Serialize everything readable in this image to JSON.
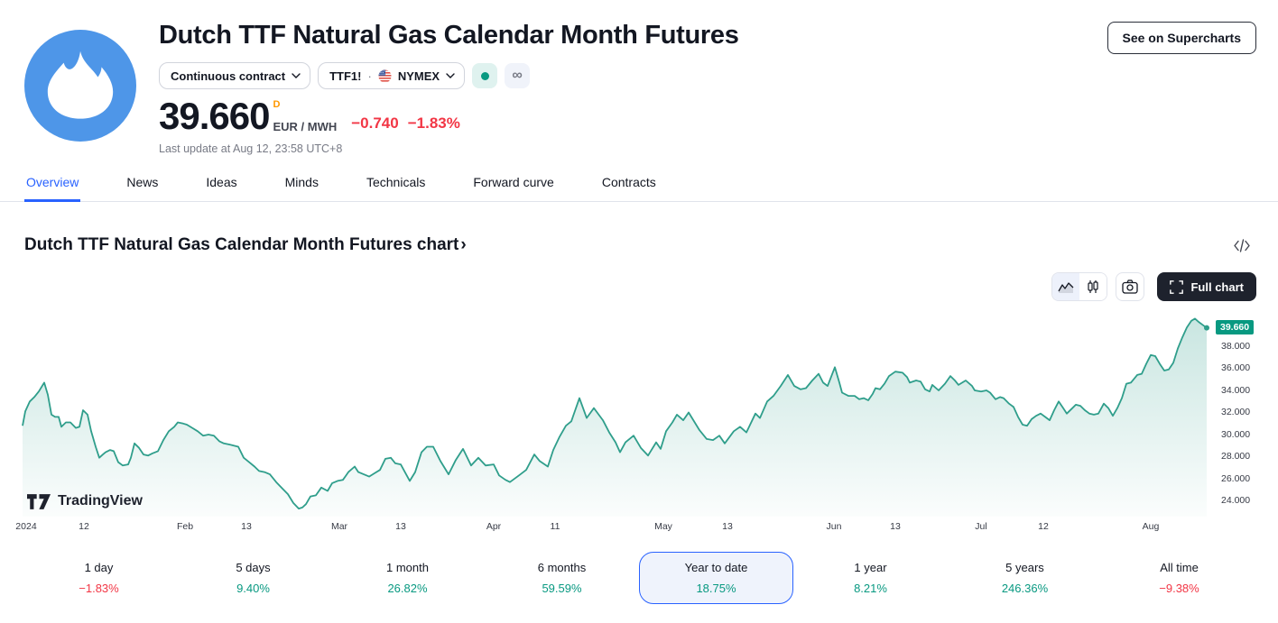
{
  "header": {
    "title": "Dutch TTF Natural Gas Calendar Month Futures",
    "contract_dropdown": {
      "label": "Continuous contract"
    },
    "symbol": {
      "ticker": "TTF1!",
      "separator": "·",
      "exchange": "NYMEX"
    },
    "infinity_glyph": "∞",
    "price": {
      "value": "39.660",
      "session_flag": "D",
      "unit": "EUR / MWH",
      "change_abs": "−0.740",
      "change_pct": "−1.83%"
    },
    "last_update": "Last update at Aug 12, 23:58 UTC+8",
    "supercharts_button": "See on Supercharts"
  },
  "tabs": [
    {
      "label": "Overview",
      "active": true
    },
    {
      "label": "News"
    },
    {
      "label": "Ideas"
    },
    {
      "label": "Minds"
    },
    {
      "label": "Technicals"
    },
    {
      "label": "Forward curve"
    },
    {
      "label": "Contracts"
    }
  ],
  "section": {
    "heading": "Dutch TTF Natural Gas Calendar Month Futures chart",
    "chevron": "›"
  },
  "controls": {
    "full_chart_label": "Full chart"
  },
  "watermark": {
    "brand": "TradingView"
  },
  "ranges": [
    {
      "label": "1 day",
      "value": "−1.83%",
      "trend": "down"
    },
    {
      "label": "5 days",
      "value": "9.40%",
      "trend": "up"
    },
    {
      "label": "1 month",
      "value": "26.82%",
      "trend": "up"
    },
    {
      "label": "6 months",
      "value": "59.59%",
      "trend": "up"
    },
    {
      "label": "Year to date",
      "value": "18.75%",
      "trend": "up",
      "selected": true
    },
    {
      "label": "1 year",
      "value": "8.21%",
      "trend": "up"
    },
    {
      "label": "5 years",
      "value": "246.36%",
      "trend": "up"
    },
    {
      "label": "All time",
      "value": "−9.38%",
      "trend": "down"
    }
  ],
  "colors": {
    "accent_blue": "#2962ff",
    "up_green": "#089981",
    "down_red": "#f23645",
    "line_teal": "#2f9e8b",
    "logo_blue": "#4e96e8",
    "badge_green": "#089981",
    "session_flag_orange": "#ff9800",
    "dark_button": "#1e222d"
  },
  "chart_data": {
    "type": "area",
    "symbol": "TTF1!",
    "unit": "EUR/MWH",
    "last_price": 39.66,
    "last_price_label": "39.660",
    "ylim": [
      23,
      41
    ],
    "grid": false,
    "legend": false,
    "y_ticks": [
      38,
      36,
      34,
      32,
      30,
      28,
      26,
      24
    ],
    "x_ticks": [
      {
        "label": "2024",
        "x": 29
      },
      {
        "label": "12",
        "x": 93
      },
      {
        "label": "Feb",
        "x": 205
      },
      {
        "label": "13",
        "x": 273
      },
      {
        "label": "Mar",
        "x": 376
      },
      {
        "label": "13",
        "x": 444
      },
      {
        "label": "Apr",
        "x": 547
      },
      {
        "label": "11",
        "x": 615
      },
      {
        "label": "May",
        "x": 735
      },
      {
        "label": "13",
        "x": 806
      },
      {
        "label": "Jun",
        "x": 924
      },
      {
        "label": "13",
        "x": 992
      },
      {
        "label": "Jul",
        "x": 1087
      },
      {
        "label": "12",
        "x": 1156
      },
      {
        "label": "Aug",
        "x": 1275
      }
    ],
    "x_domain": [
      10,
      1340
    ],
    "points": [
      [
        25,
        30.8
      ],
      [
        28,
        32.1
      ],
      [
        33,
        33
      ],
      [
        38,
        33.4
      ],
      [
        43,
        33.9
      ],
      [
        49,
        34.7
      ],
      [
        53,
        33.6
      ],
      [
        57,
        31.8
      ],
      [
        61,
        31.6
      ],
      [
        65,
        31.6
      ],
      [
        68,
        30.7
      ],
      [
        73,
        31.1
      ],
      [
        78,
        31.1
      ],
      [
        84,
        30.6
      ],
      [
        88,
        30.7
      ],
      [
        92,
        32.2
      ],
      [
        97,
        31.8
      ],
      [
        101,
        30.3
      ],
      [
        106,
        28.9
      ],
      [
        110,
        27.9
      ],
      [
        114,
        28.2
      ],
      [
        117,
        28.4
      ],
      [
        122,
        28.6
      ],
      [
        126,
        28.5
      ],
      [
        131,
        27.5
      ],
      [
        136,
        27.2
      ],
      [
        142,
        27.3
      ],
      [
        145,
        27.9
      ],
      [
        149,
        29.2
      ],
      [
        154,
        28.8
      ],
      [
        159,
        28.2
      ],
      [
        164,
        28.1
      ],
      [
        169,
        28.3
      ],
      [
        175,
        28.5
      ],
      [
        181,
        29.5
      ],
      [
        187,
        30.3
      ],
      [
        193,
        30.7
      ],
      [
        197,
        31.1
      ],
      [
        203,
        31
      ],
      [
        207,
        30.9
      ],
      [
        213,
        30.6
      ],
      [
        219,
        30.3
      ],
      [
        225,
        29.9
      ],
      [
        231,
        30
      ],
      [
        237,
        29.9
      ],
      [
        243,
        29.4
      ],
      [
        248,
        29.2
      ],
      [
        254,
        29.1
      ],
      [
        259,
        29
      ],
      [
        264,
        28.9
      ],
      [
        270,
        27.9
      ],
      [
        276,
        27.5
      ],
      [
        282,
        27.1
      ],
      [
        287,
        26.7
      ],
      [
        293,
        26.6
      ],
      [
        299,
        26.4
      ],
      [
        306,
        25.7
      ],
      [
        313,
        25.1
      ],
      [
        319,
        24.6
      ],
      [
        325,
        23.8
      ],
      [
        331,
        23.3
      ],
      [
        335,
        23.4
      ],
      [
        339,
        23.7
      ],
      [
        344,
        24.4
      ],
      [
        350,
        24.5
      ],
      [
        356,
        25.2
      ],
      [
        363,
        24.9
      ],
      [
        368,
        25.6
      ],
      [
        374,
        25.8
      ],
      [
        380,
        25.9
      ],
      [
        386,
        26.6
      ],
      [
        393,
        27.1
      ],
      [
        397,
        26.6
      ],
      [
        403,
        26.4
      ],
      [
        409,
        26.2
      ],
      [
        415,
        26.5
      ],
      [
        421,
        26.8
      ],
      [
        427,
        27.8
      ],
      [
        433,
        27.9
      ],
      [
        438,
        27.4
      ],
      [
        444,
        27.3
      ],
      [
        448,
        26.7
      ],
      [
        454,
        25.8
      ],
      [
        460,
        26.6
      ],
      [
        467,
        28.4
      ],
      [
        473,
        28.9
      ],
      [
        480,
        28.9
      ],
      [
        488,
        27.6
      ],
      [
        497,
        26.4
      ],
      [
        505,
        27.7
      ],
      [
        513,
        28.7
      ],
      [
        522,
        27.2
      ],
      [
        530,
        27.9
      ],
      [
        538,
        27.2
      ],
      [
        547,
        27.3
      ],
      [
        553,
        26.3
      ],
      [
        560,
        25.9
      ],
      [
        565,
        25.7
      ],
      [
        575,
        26.3
      ],
      [
        583,
        26.8
      ],
      [
        592,
        28.2
      ],
      [
        598,
        27.6
      ],
      [
        607,
        27.1
      ],
      [
        613,
        28.6
      ],
      [
        620,
        29.8
      ],
      [
        627,
        30.8
      ],
      [
        633,
        31.2
      ],
      [
        642,
        33.3
      ],
      [
        650,
        31.5
      ],
      [
        658,
        32.4
      ],
      [
        668,
        31.3
      ],
      [
        675,
        30.2
      ],
      [
        682,
        29.3
      ],
      [
        687,
        28.4
      ],
      [
        693,
        29.3
      ],
      [
        702,
        29.9
      ],
      [
        710,
        28.8
      ],
      [
        718,
        28.1
      ],
      [
        727,
        29.3
      ],
      [
        732,
        28.7
      ],
      [
        738,
        30.3
      ],
      [
        745,
        31.1
      ],
      [
        750,
        31.8
      ],
      [
        757,
        31.3
      ],
      [
        763,
        32
      ],
      [
        775,
        30.4
      ],
      [
        783,
        29.6
      ],
      [
        790,
        29.5
      ],
      [
        797,
        29.9
      ],
      [
        803,
        29.2
      ],
      [
        813,
        30.3
      ],
      [
        820,
        30.7
      ],
      [
        827,
        30.2
      ],
      [
        837,
        31.9
      ],
      [
        842,
        31.5
      ],
      [
        850,
        33
      ],
      [
        857,
        33.5
      ],
      [
        865,
        34.4
      ],
      [
        873,
        35.4
      ],
      [
        880,
        34.4
      ],
      [
        887,
        34.1
      ],
      [
        893,
        34.2
      ],
      [
        900,
        34.9
      ],
      [
        907,
        35.5
      ],
      [
        912,
        34.7
      ],
      [
        917,
        34.4
      ],
      [
        925,
        36.1
      ],
      [
        930,
        34.7
      ],
      [
        933,
        33.8
      ],
      [
        940,
        33.5
      ],
      [
        947,
        33.5
      ],
      [
        952,
        33.2
      ],
      [
        957,
        33.3
      ],
      [
        962,
        33.1
      ],
      [
        967,
        33.7
      ],
      [
        970,
        34.2
      ],
      [
        975,
        34.1
      ],
      [
        980,
        34.6
      ],
      [
        985,
        35.3
      ],
      [
        992,
        35.7
      ],
      [
        1000,
        35.6
      ],
      [
        1005,
        35.2
      ],
      [
        1008,
        34.7
      ],
      [
        1015,
        34.9
      ],
      [
        1020,
        34.8
      ],
      [
        1025,
        34.1
      ],
      [
        1030,
        33.9
      ],
      [
        1033,
        34.5
      ],
      [
        1040,
        34
      ],
      [
        1047,
        34.6
      ],
      [
        1053,
        35.3
      ],
      [
        1058,
        34.9
      ],
      [
        1062,
        34.5
      ],
      [
        1070,
        34.9
      ],
      [
        1077,
        34.4
      ],
      [
        1080,
        34
      ],
      [
        1087,
        33.9
      ],
      [
        1093,
        34
      ],
      [
        1097,
        33.8
      ],
      [
        1103,
        33.2
      ],
      [
        1108,
        33.4
      ],
      [
        1112,
        33.3
      ],
      [
        1118,
        32.8
      ],
      [
        1123,
        32.5
      ],
      [
        1128,
        31.6
      ],
      [
        1133,
        30.9
      ],
      [
        1138,
        30.8
      ],
      [
        1143,
        31.4
      ],
      [
        1148,
        31.7
      ],
      [
        1153,
        31.9
      ],
      [
        1158,
        31.6
      ],
      [
        1163,
        31.3
      ],
      [
        1168,
        32.2
      ],
      [
        1173,
        33
      ],
      [
        1178,
        32.4
      ],
      [
        1182,
        31.9
      ],
      [
        1187,
        32.3
      ],
      [
        1192,
        32.7
      ],
      [
        1197,
        32.6
      ],
      [
        1202,
        32.2
      ],
      [
        1207,
        31.9
      ],
      [
        1212,
        31.8
      ],
      [
        1217,
        31.9
      ],
      [
        1223,
        32.8
      ],
      [
        1228,
        32.4
      ],
      [
        1233,
        31.7
      ],
      [
        1238,
        32.4
      ],
      [
        1243,
        33.3
      ],
      [
        1248,
        34.6
      ],
      [
        1253,
        34.7
      ],
      [
        1260,
        35.4
      ],
      [
        1265,
        35.5
      ],
      [
        1270,
        36.4
      ],
      [
        1275,
        37.2
      ],
      [
        1280,
        37.1
      ],
      [
        1285,
        36.4
      ],
      [
        1290,
        35.8
      ],
      [
        1295,
        35.9
      ],
      [
        1300,
        36.5
      ],
      [
        1305,
        37.8
      ],
      [
        1310,
        38.8
      ],
      [
        1315,
        39.7
      ],
      [
        1320,
        40.3
      ],
      [
        1324,
        40.5
      ],
      [
        1328,
        40.2
      ],
      [
        1333,
        39.9
      ],
      [
        1337,
        39.66
      ]
    ]
  }
}
